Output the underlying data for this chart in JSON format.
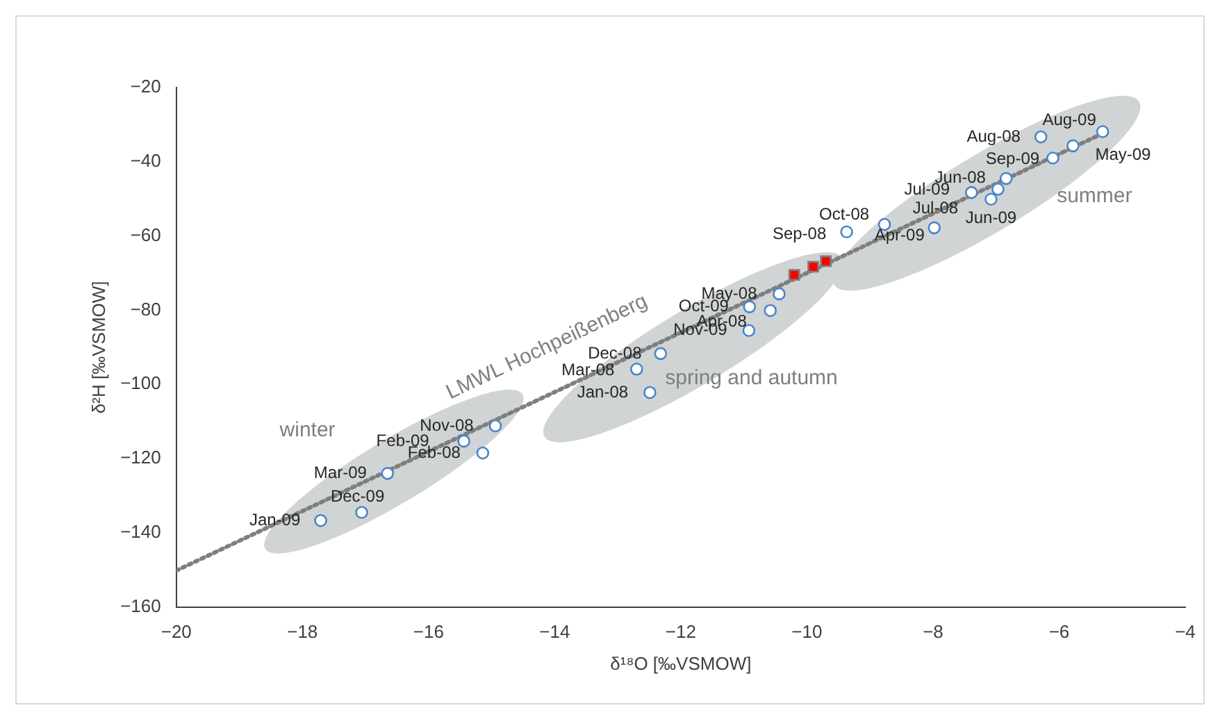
{
  "chart_data": {
    "type": "scatter",
    "xlabel": "δ¹⁸O [‰VSMOW]",
    "ylabel": "δ²H [‰VSMOW]",
    "xlim": [
      -20,
      -4
    ],
    "xticks": [
      -20,
      -18,
      -16,
      -14,
      -12,
      -10,
      -8,
      -6,
      -4
    ],
    "ylim": [
      -160,
      -20
    ],
    "yticks": [
      -160,
      -140,
      -120,
      -100,
      -80,
      -60,
      -40,
      -20
    ],
    "grid": false,
    "legend": false,
    "series": [
      {
        "type": "line",
        "name": "LMWL Hochpeißenberg",
        "color": "#7f7f7f",
        "x": [
          -20,
          -5.3
        ],
        "values": [
          -150.2,
          -32.3
        ],
        "marker": "none",
        "line_style": "dotted"
      },
      {
        "type": "scatter",
        "color": "#4a86c8",
        "marker": "circle",
        "x": [
          -14.94,
          -15.44,
          -15.14,
          -16.65,
          -17.06,
          -17.71,
          -10.44,
          -10.91,
          -10.58,
          -10.92,
          -12.32,
          -12.7,
          -12.49,
          -5.31,
          -6.29,
          -5.78,
          -6.1,
          -6.84,
          -6.97,
          -7.39,
          -7.08,
          -7.98,
          -8.77,
          -9.37
        ],
        "values": [
          -111.2,
          -115.3,
          -118.5,
          -124,
          -134.5,
          -136.7,
          -75.6,
          -79.1,
          -80.1,
          -85.5,
          -91.7,
          -95.9,
          -102.2,
          -31.9,
          -33.3,
          -35.7,
          -39,
          -44.5,
          -47.4,
          -48.3,
          -50.1,
          -57.8,
          -56.9,
          -58.9
        ]
      },
      {
        "type": "scatter",
        "color": "#ff0000",
        "marker": "square",
        "x": [
          -10.2,
          -9.9,
          -9.7
        ],
        "values": [
          -70.5,
          -68.3,
          -66.8
        ]
      }
    ],
    "annotations": [
      {
        "text": "Nov-08",
        "x": -14.94,
        "y": -111.2
      },
      {
        "text": "Feb-09",
        "x": -15.44,
        "y": -115.3
      },
      {
        "text": "Feb-08",
        "x": -15.14,
        "y": -118.5
      },
      {
        "text": "Mar-09",
        "x": -16.65,
        "y": -124
      },
      {
        "text": "Dec-09",
        "x": -17.06,
        "y": -134.5
      },
      {
        "text": "Jan-09",
        "x": -17.71,
        "y": -136.7
      },
      {
        "text": "May-08",
        "x": -10.44,
        "y": -75.6
      },
      {
        "text": "Oct-09",
        "x": -10.91,
        "y": -79.1
      },
      {
        "text": "Apr-08",
        "x": -10.58,
        "y": -80.1
      },
      {
        "text": "Nov-09",
        "x": -10.92,
        "y": -85.5
      },
      {
        "text": "Dec-08",
        "x": -12.32,
        "y": -91.7
      },
      {
        "text": "Mar-08",
        "x": -12.7,
        "y": -95.9
      },
      {
        "text": "Jan-08",
        "x": -12.49,
        "y": -102.2
      },
      {
        "text": "Aug-09",
        "x": -5.31,
        "y": -31.9
      },
      {
        "text": "Aug-08",
        "x": -6.29,
        "y": -33.3
      },
      {
        "text": "May-09",
        "x": -5.78,
        "y": -35.7
      },
      {
        "text": "Sep-09",
        "x": -6.1,
        "y": -39
      },
      {
        "text": "Jun-08",
        "x": -6.84,
        "y": -44.5
      },
      {
        "text": "Jul-08",
        "x": -6.97,
        "y": -47.4
      },
      {
        "text": "Jul-09",
        "x": -7.39,
        "y": -48.3
      },
      {
        "text": "Jun-09",
        "x": -7.08,
        "y": -50.1
      },
      {
        "text": "Apr-09",
        "x": -7.98,
        "y": -57.8
      },
      {
        "text": "Oct-08",
        "x": -8.77,
        "y": -56.9
      },
      {
        "text": "Sep-08",
        "x": -9.37,
        "y": -58.9
      },
      "winter",
      "spring and autumn",
      "summer"
    ]
  }
}
